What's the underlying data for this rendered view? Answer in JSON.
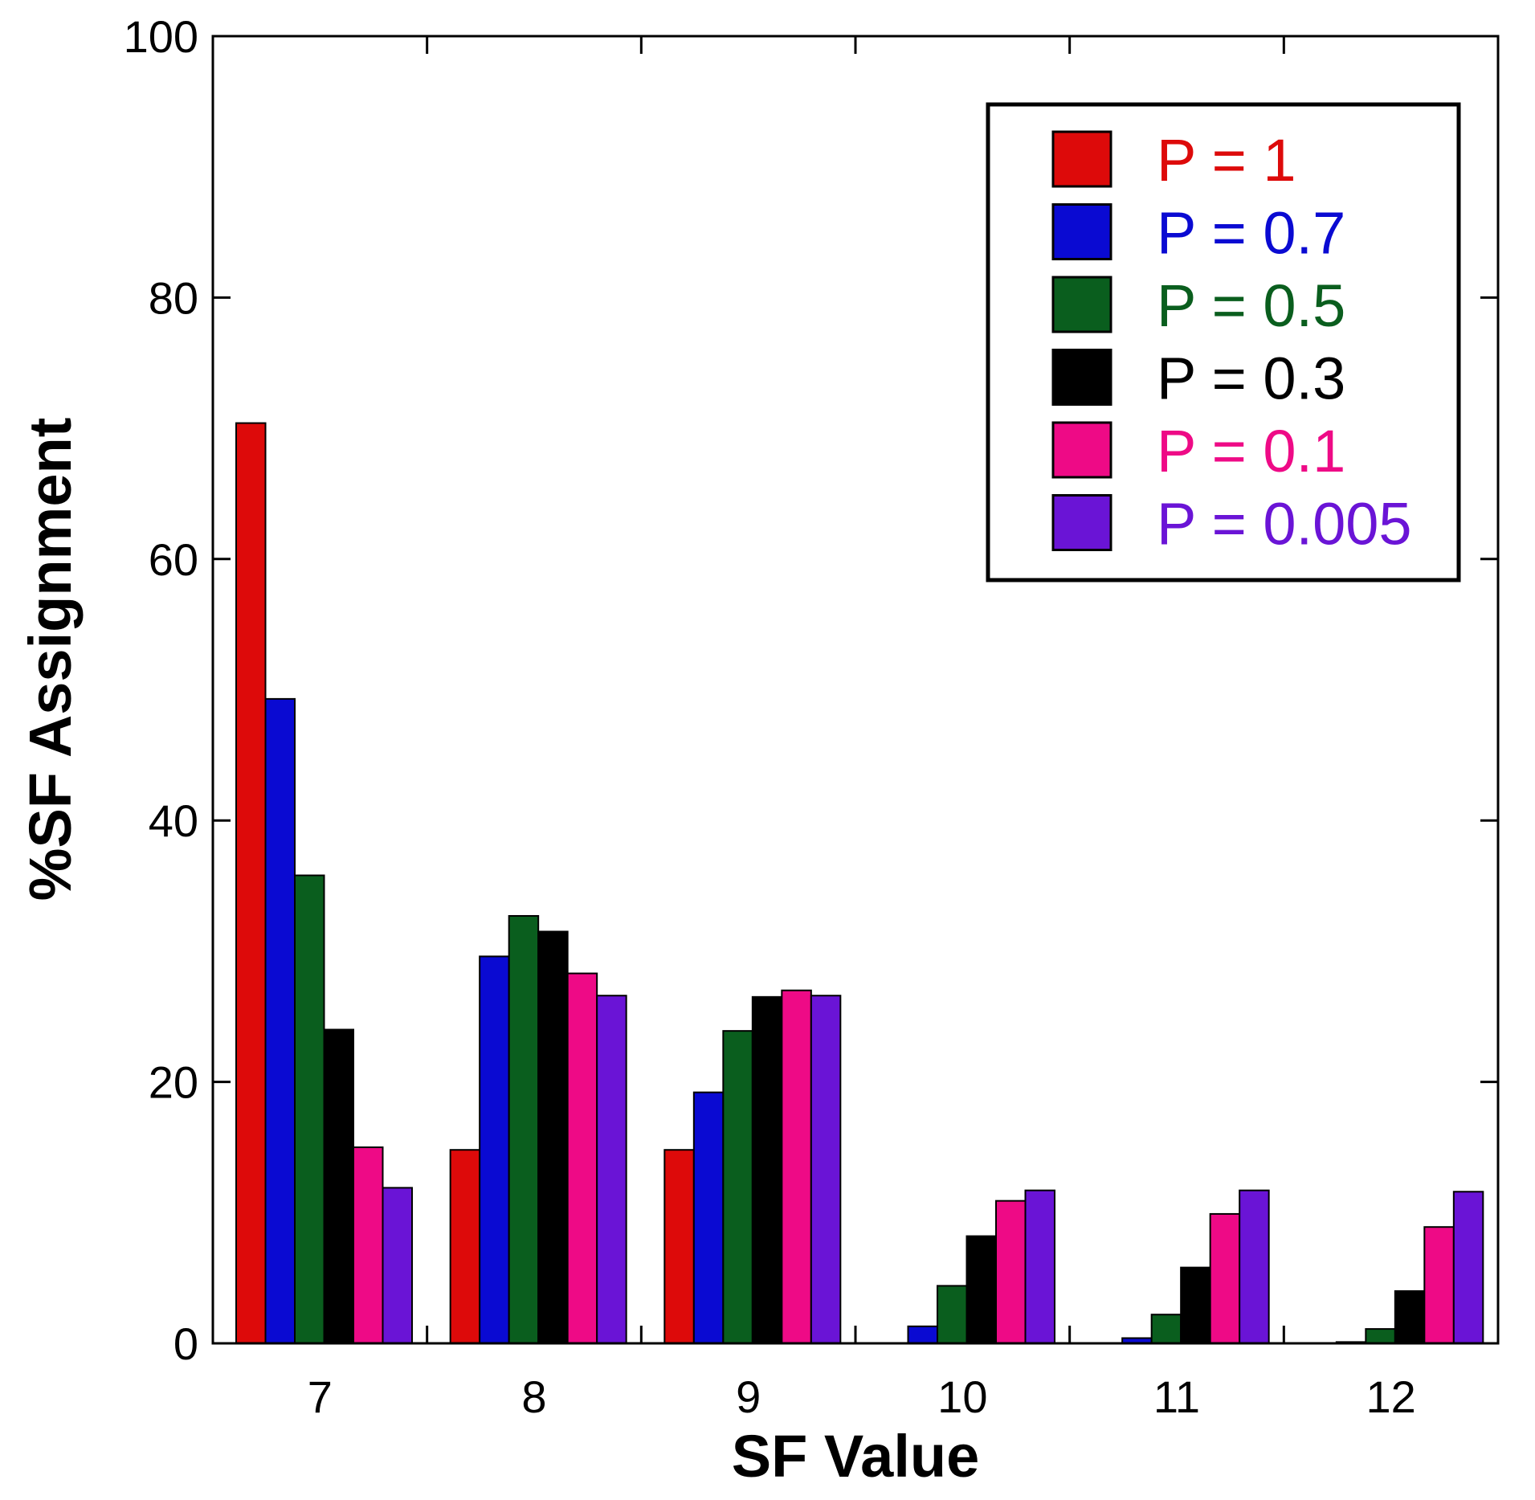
{
  "chart_data": {
    "type": "bar",
    "title": "",
    "xlabel": "SF Value",
    "ylabel": "%SF Assignment",
    "ylim": [
      0,
      100
    ],
    "yticks": [
      "0",
      "20",
      "40",
      "60",
      "80",
      "100"
    ],
    "categories": [
      "7",
      "8",
      "9",
      "10",
      "11",
      "12"
    ],
    "legend_position": "top-right",
    "grid": false,
    "series": [
      {
        "name": "P = 1",
        "color": "#dd0a0a",
        "values": [
          70.4,
          14.8,
          14.8,
          0,
          0,
          0
        ]
      },
      {
        "name": "P = 0.7",
        "color": "#0a0ad2",
        "values": [
          49.3,
          29.6,
          19.2,
          1.3,
          0.4,
          0.1
        ]
      },
      {
        "name": "P = 0.5",
        "color": "#0a5e1e",
        "values": [
          35.8,
          32.7,
          23.9,
          4.4,
          2.2,
          1.1
        ]
      },
      {
        "name": "P = 0.3",
        "color": "#000000",
        "values": [
          24.0,
          31.5,
          26.5,
          8.2,
          5.8,
          4.0
        ]
      },
      {
        "name": "P = 0.1",
        "color": "#ee0a86",
        "values": [
          15.0,
          28.3,
          27.0,
          10.9,
          9.9,
          8.9
        ]
      },
      {
        "name": "P = 0.005",
        "color": "#6a14d6",
        "values": [
          11.9,
          26.6,
          26.6,
          11.7,
          11.7,
          11.6
        ]
      }
    ]
  }
}
